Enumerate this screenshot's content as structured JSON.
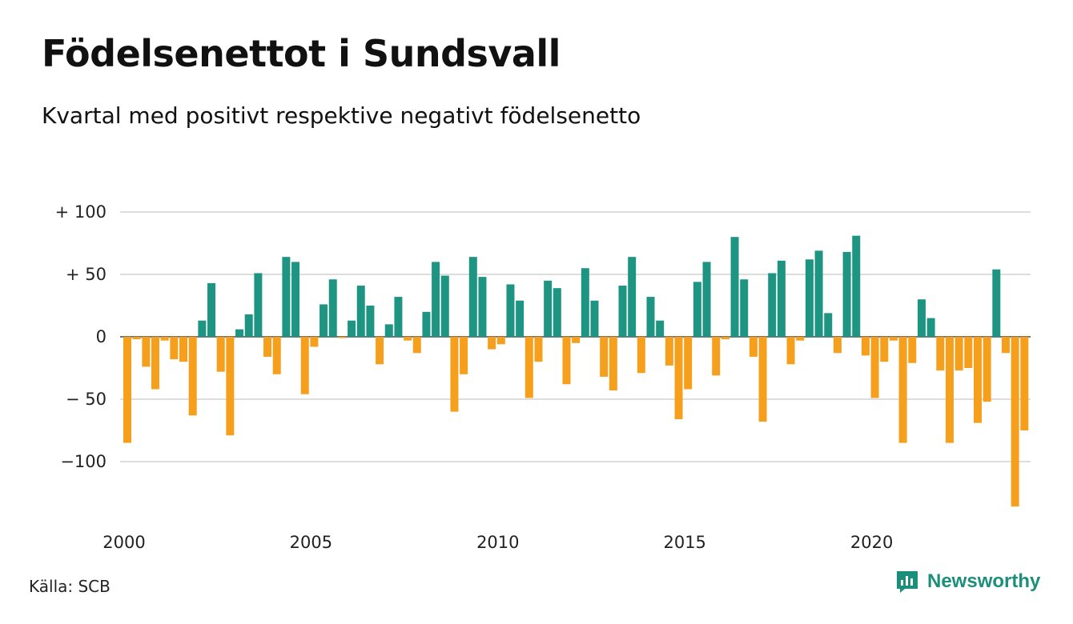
{
  "title": "Födelsenettot i Sundsvall",
  "subtitle": "Kvartal med positivt respektive negativt födelsenetto",
  "source": "Källa: SCB",
  "brand": {
    "name": "Newsworthy",
    "icon": "newsworthy-logo-icon"
  },
  "colors": {
    "positive": "#1e9583",
    "negative": "#f59f1c",
    "grid": "#dddddd"
  },
  "chart_data": {
    "type": "bar",
    "start_year": 2000,
    "periods_per_year": 4,
    "values": [
      -85,
      -2,
      -24,
      -42,
      -3,
      -18,
      -20,
      -63,
      13,
      43,
      -28,
      -79,
      6,
      18,
      51,
      -16,
      -30,
      64,
      60,
      -46,
      -8,
      26,
      46,
      -1,
      13,
      41,
      25,
      -22,
      10,
      32,
      -3,
      -13,
      20,
      60,
      49,
      -60,
      -30,
      64,
      48,
      -10,
      -6,
      42,
      29,
      -49,
      -20,
      45,
      39,
      -38,
      -5,
      55,
      29,
      -32,
      -43,
      41,
      64,
      -29,
      32,
      13,
      -23,
      -66,
      -42,
      44,
      60,
      -31,
      -2,
      80,
      46,
      -16,
      -68,
      51,
      61,
      -22,
      -3,
      62,
      69,
      19,
      -13,
      68,
      81,
      -15,
      -49,
      -20,
      -3,
      -85,
      -21,
      30,
      15,
      -27,
      -85,
      -27,
      -25,
      -69,
      -52,
      54,
      -13,
      -136,
      -75
    ],
    "y_ticks": [
      100,
      50,
      0,
      -50,
      -100
    ],
    "y_tick_labels": [
      "+ 100",
      "+  50",
      "0",
      "− 50",
      "−100"
    ],
    "x_tick_labels": [
      "2000",
      "2005",
      "2010",
      "2015",
      "2020"
    ],
    "ylim": [
      -140,
      100
    ],
    "grid": true,
    "legend": "none"
  }
}
